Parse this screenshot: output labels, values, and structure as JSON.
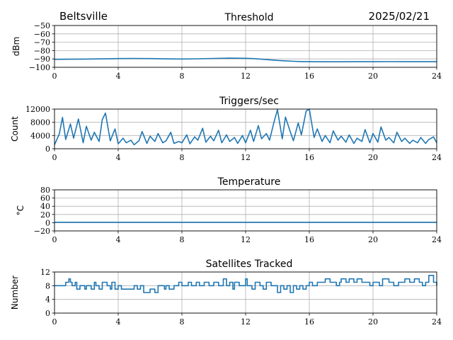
{
  "header": {
    "site": "Beltsville",
    "date": "2025/02/21"
  },
  "colors": {
    "series": "#1f77b4",
    "grid": "#b0b0b0"
  },
  "chart_data": [
    {
      "id": "threshold",
      "type": "line",
      "title": "Threshold",
      "xlabel": "",
      "ylabel": "dBm",
      "xlim": [
        0,
        24
      ],
      "ylim": [
        -100,
        -50
      ],
      "xticks": [
        0,
        4,
        8,
        12,
        16,
        20,
        24
      ],
      "yticks": [
        -100,
        -90,
        -80,
        -70,
        -60,
        -50
      ],
      "grid": true,
      "series": [
        {
          "x": [
            0,
            1,
            2,
            3,
            4,
            5,
            6,
            7,
            8,
            9,
            10,
            11,
            12,
            12.5,
            13,
            13.5,
            14,
            14.5,
            15,
            15.5,
            16,
            17,
            18,
            19,
            20,
            21,
            22,
            23,
            24
          ],
          "y": [
            -90.5,
            -90.3,
            -90.2,
            -89.9,
            -89.6,
            -89.4,
            -89.6,
            -89.9,
            -90.1,
            -89.8,
            -89.4,
            -89.1,
            -89.2,
            -89.6,
            -90.3,
            -91.0,
            -91.8,
            -92.3,
            -92.8,
            -93.1,
            -93.3,
            -93.4,
            -93.4,
            -93.3,
            -93.3,
            -93.2,
            -93.3,
            -93.3,
            -93.3
          ]
        }
      ]
    },
    {
      "id": "triggers",
      "type": "line",
      "title": "Triggers/sec",
      "xlabel": "",
      "ylabel": "Count",
      "xlim": [
        0,
        24
      ],
      "ylim": [
        0,
        12000
      ],
      "xticks": [
        0,
        4,
        8,
        12,
        16,
        20,
        24
      ],
      "yticks": [
        0,
        4000,
        8000,
        12000
      ],
      "ytick_labels": [
        "0",
        "4000",
        "8000",
        "12000"
      ],
      "grid": true,
      "series": [
        {
          "x": [
            0,
            0.3,
            0.5,
            0.7,
            1,
            1.2,
            1.5,
            1.8,
            2,
            2.3,
            2.5,
            2.8,
            3,
            3.2,
            3.5,
            3.8,
            4,
            4.3,
            4.5,
            4.8,
            5,
            5.3,
            5.5,
            5.8,
            6,
            6.3,
            6.5,
            6.8,
            7,
            7.3,
            7.5,
            7.8,
            8,
            8.3,
            8.5,
            8.8,
            9,
            9.3,
            9.5,
            9.8,
            10,
            10.3,
            10.5,
            10.8,
            11,
            11.3,
            11.5,
            11.8,
            12,
            12.3,
            12.5,
            12.8,
            13,
            13.3,
            13.5,
            13.8,
            14,
            14.3,
            14.5,
            14.8,
            15,
            15.3,
            15.5,
            15.8,
            16,
            16.3,
            16.5,
            16.8,
            17,
            17.3,
            17.5,
            17.8,
            18,
            18.3,
            18.5,
            18.8,
            19,
            19.3,
            19.5,
            19.8,
            20,
            20.3,
            20.5,
            20.8,
            21,
            21.3,
            21.5,
            21.8,
            22,
            22.3,
            22.5,
            22.8,
            23,
            23.3,
            23.5,
            23.8,
            24
          ],
          "y": [
            1200,
            4500,
            9500,
            2800,
            7500,
            3200,
            9000,
            1800,
            6800,
            2600,
            5000,
            2200,
            8800,
            10800,
            2400,
            6000,
            1500,
            3200,
            1800,
            2600,
            1200,
            2400,
            5200,
            1600,
            3800,
            2200,
            4600,
            1800,
            2400,
            5000,
            1600,
            2200,
            1800,
            4200,
            1500,
            3600,
            2600,
            6200,
            2000,
            3800,
            2400,
            5600,
            1800,
            4200,
            2200,
            3400,
            1600,
            4000,
            1800,
            5600,
            2200,
            7000,
            3000,
            4600,
            2600,
            8400,
            11800,
            3000,
            9600,
            5200,
            2400,
            7800,
            4200,
            11400,
            12000,
            3400,
            6000,
            2200,
            4000,
            1800,
            5400,
            2600,
            3800,
            2000,
            4200,
            1600,
            3200,
            2200,
            5800,
            1800,
            4600,
            2000,
            6600,
            2600,
            3400,
            1800,
            5000,
            2200,
            3200,
            1600,
            2600,
            1800,
            3400,
            1600,
            2800,
            3600,
            1800
          ]
        }
      ]
    },
    {
      "id": "temperature",
      "type": "line",
      "title": "Temperature",
      "xlabel": "",
      "ylabel": "°C",
      "xlim": [
        0,
        24
      ],
      "ylim": [
        -20,
        80
      ],
      "xticks": [
        0,
        4,
        8,
        12,
        16,
        20,
        24
      ],
      "yticks": [
        -20,
        0,
        20,
        40,
        60,
        80
      ],
      "grid": true,
      "series": [
        {
          "x": [
            0,
            24
          ],
          "y": [
            1,
            1
          ]
        }
      ]
    },
    {
      "id": "satellites",
      "type": "line",
      "title": "Satellites Tracked",
      "xlabel": "",
      "ylabel": "Number",
      "xlim": [
        0,
        24
      ],
      "ylim": [
        0,
        12
      ],
      "xticks": [
        0,
        4,
        8,
        12,
        16,
        20,
        24
      ],
      "yticks": [
        0,
        4,
        8,
        12
      ],
      "grid": true,
      "step": true,
      "series": [
        {
          "x": [
            0,
            0.7,
            0.9,
            1.0,
            1.1,
            1.3,
            1.4,
            1.6,
            1.9,
            2.0,
            2.3,
            2.5,
            2.6,
            2.8,
            3.0,
            3.3,
            3.5,
            3.6,
            3.8,
            4.0,
            4.2,
            4.5,
            5.0,
            5.2,
            5.4,
            5.6,
            6.0,
            6.3,
            6.5,
            6.9,
            7.0,
            7.2,
            7.5,
            7.8,
            8.0,
            8.4,
            8.6,
            8.9,
            9.1,
            9.4,
            9.7,
            10.0,
            10.3,
            10.6,
            10.8,
            11.0,
            11.2,
            11.3,
            11.6,
            12.0,
            12.1,
            12.4,
            12.6,
            12.9,
            13.1,
            13.3,
            13.6,
            14.0,
            14.2,
            14.4,
            14.6,
            14.8,
            15.0,
            15.2,
            15.4,
            15.6,
            15.8,
            16.0,
            16.2,
            16.5,
            17.0,
            17.3,
            17.7,
            17.9,
            18.0,
            18.3,
            18.5,
            18.8,
            19.0,
            19.3,
            19.8,
            20.0,
            20.4,
            20.6,
            21.0,
            21.3,
            21.6,
            21.8,
            22.0,
            22.3,
            22.6,
            22.9,
            23.1,
            23.3,
            23.5,
            23.8,
            24.0
          ],
          "y": [
            8,
            9,
            10,
            9,
            8,
            9,
            7,
            8,
            7,
            8,
            7,
            9,
            8,
            7,
            9,
            8,
            7,
            9,
            7,
            8,
            7,
            7,
            8,
            7,
            8,
            6,
            7,
            6,
            8,
            7,
            8,
            7,
            8,
            9,
            8,
            9,
            8,
            9,
            8,
            9,
            8,
            9,
            8,
            10,
            8,
            9,
            7,
            9,
            8,
            10,
            8,
            7,
            9,
            8,
            7,
            9,
            8,
            6,
            8,
            7,
            8,
            6,
            8,
            7,
            8,
            7,
            8,
            9,
            8,
            9,
            10,
            9,
            8,
            9,
            10,
            9,
            10,
            9,
            10,
            9,
            8,
            9,
            8,
            10,
            9,
            8,
            9,
            9,
            10,
            9,
            10,
            9,
            8,
            9,
            11,
            9,
            8
          ]
        }
      ]
    }
  ]
}
